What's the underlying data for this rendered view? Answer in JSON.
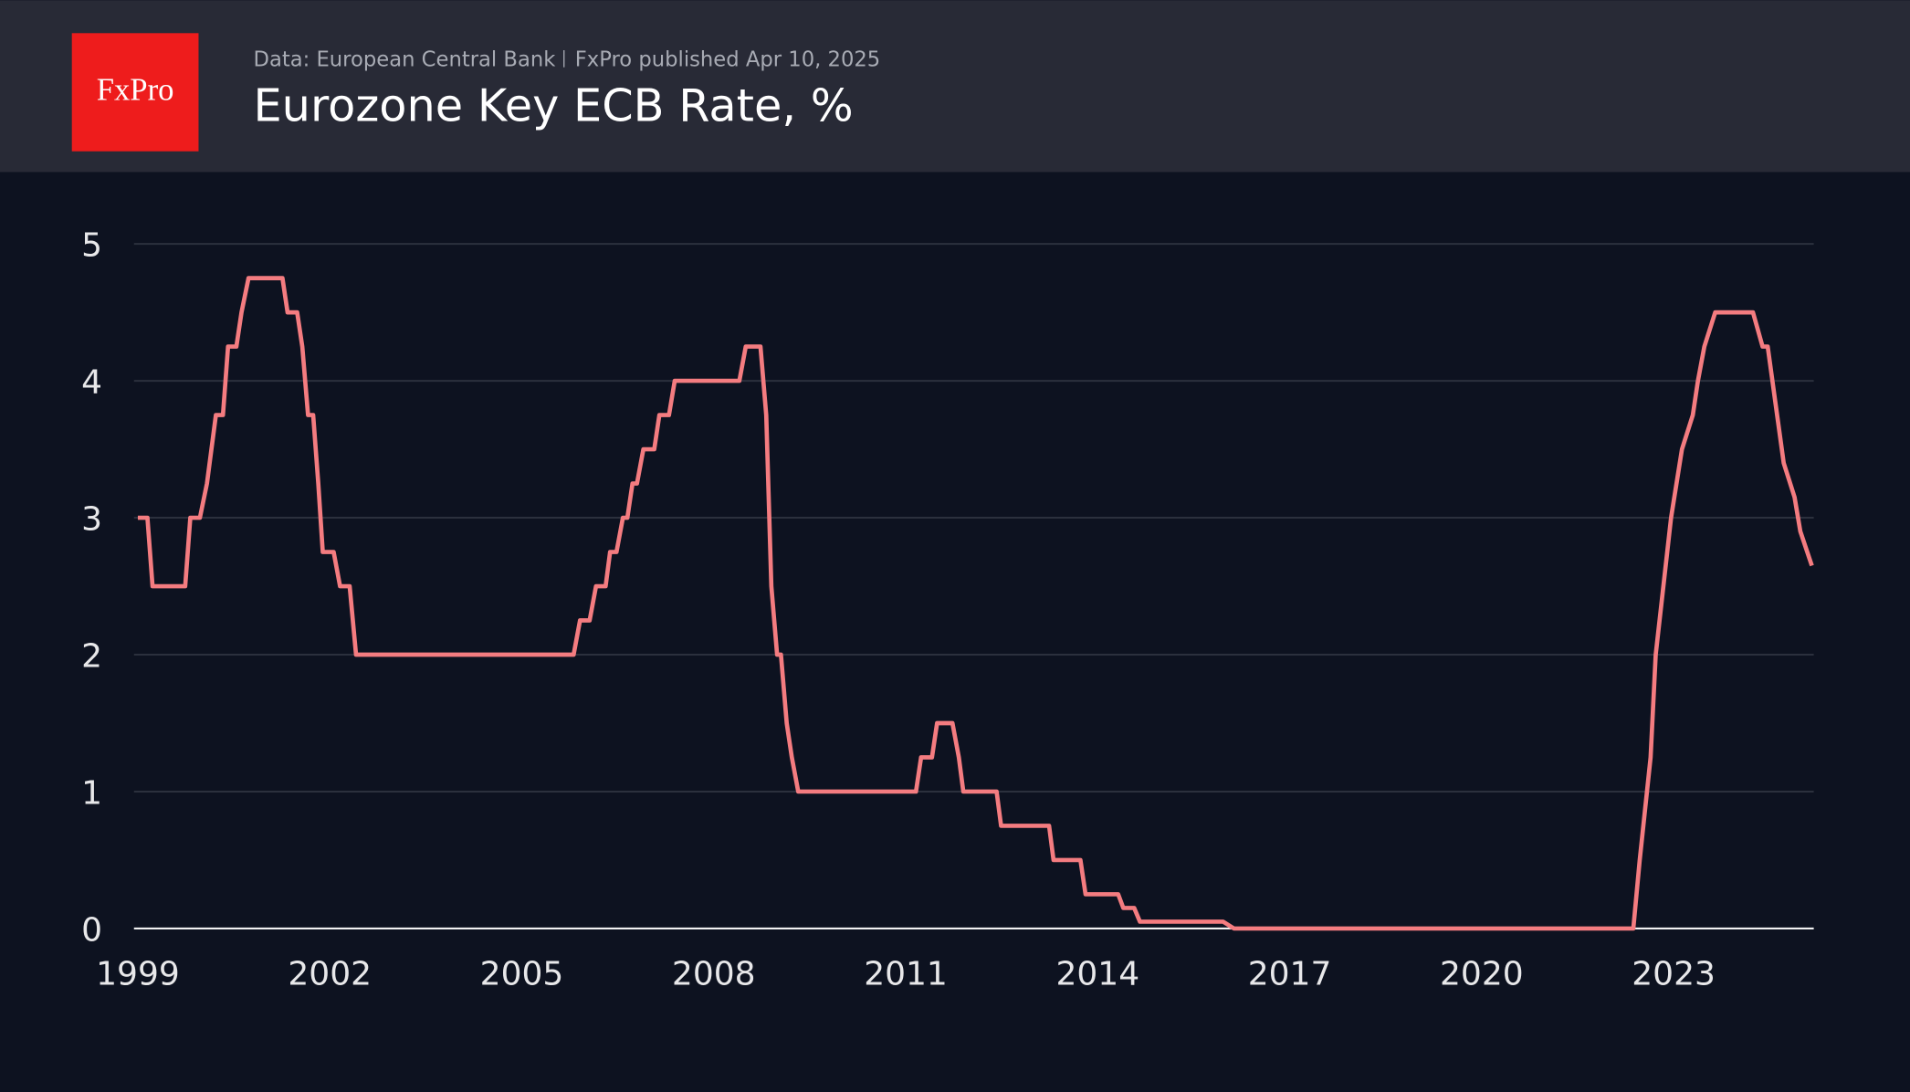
{
  "header": {
    "logo": "FxPro",
    "source": "Data: European Central Bank",
    "published": "FxPro published Apr 10, 2025"
  },
  "chart_data": {
    "type": "line",
    "title": "Eurozone Key ECB Rate, %",
    "x": [
      1999.0,
      1999.15,
      1999.23,
      1999.74,
      1999.82,
      1999.97,
      2000.08,
      2000.22,
      2000.33,
      2000.41,
      2000.54,
      2000.62,
      2000.73,
      2001.26,
      2001.34,
      2001.49,
      2001.57,
      2001.66,
      2001.74,
      2001.82,
      2001.89,
      2002.06,
      2002.16,
      2002.31,
      2002.41,
      2005.81,
      2005.91,
      2006.06,
      2006.16,
      2006.31,
      2006.38,
      2006.48,
      2006.58,
      2006.65,
      2006.73,
      2006.8,
      2006.9,
      2007.07,
      2007.15,
      2007.3,
      2007.39,
      2008.4,
      2008.5,
      2008.73,
      2008.82,
      2008.9,
      2008.99,
      2009.05,
      2009.14,
      2009.22,
      2009.32,
      2011.16,
      2011.24,
      2011.41,
      2011.49,
      2011.73,
      2011.83,
      2011.9,
      2012.42,
      2012.49,
      2013.24,
      2013.31,
      2013.73,
      2013.81,
      2014.32,
      2014.4,
      2014.57,
      2014.66,
      2015.96,
      2016.13,
      2022.37,
      2022.47,
      2022.64,
      2022.72,
      2022.96,
      2023.13,
      2023.3,
      2023.38,
      2023.48,
      2023.65,
      2024.24,
      2024.39,
      2024.47,
      2024.72,
      2024.89,
      2024.98,
      2025.16
    ],
    "series": [
      {
        "name": "Key ECB Rate",
        "color": "#f47c80",
        "values": [
          3.0,
          3.0,
          2.5,
          2.5,
          3.0,
          3.0,
          3.25,
          3.75,
          3.75,
          4.25,
          4.25,
          4.5,
          4.75,
          4.75,
          4.5,
          4.5,
          4.25,
          3.75,
          3.75,
          3.25,
          2.75,
          2.75,
          2.5,
          2.5,
          2.0,
          2.0,
          2.25,
          2.25,
          2.5,
          2.5,
          2.75,
          2.75,
          3.0,
          3.0,
          3.25,
          3.25,
          3.5,
          3.5,
          3.75,
          3.75,
          4.0,
          4.0,
          4.25,
          4.25,
          3.75,
          2.5,
          2.0,
          2.0,
          1.5,
          1.25,
          1.0,
          1.0,
          1.25,
          1.25,
          1.5,
          1.5,
          1.25,
          1.0,
          1.0,
          0.75,
          0.75,
          0.5,
          0.5,
          0.25,
          0.25,
          0.15,
          0.15,
          0.05,
          0.05,
          0.0,
          0.0,
          0.5,
          1.25,
          2.0,
          3.0,
          3.5,
          3.75,
          4.0,
          4.25,
          4.5,
          4.5,
          4.25,
          4.25,
          3.4,
          3.15,
          2.9,
          2.65
        ]
      }
    ],
    "xlim": [
      1998.94,
      2025.19
    ],
    "xticks": [
      1999,
      2002,
      2005,
      2008,
      2011,
      2014,
      2017,
      2020,
      2023
    ],
    "ylim": [
      0,
      5
    ],
    "yticks": [
      0,
      1,
      2,
      3,
      4,
      5
    ],
    "grid": true
  }
}
